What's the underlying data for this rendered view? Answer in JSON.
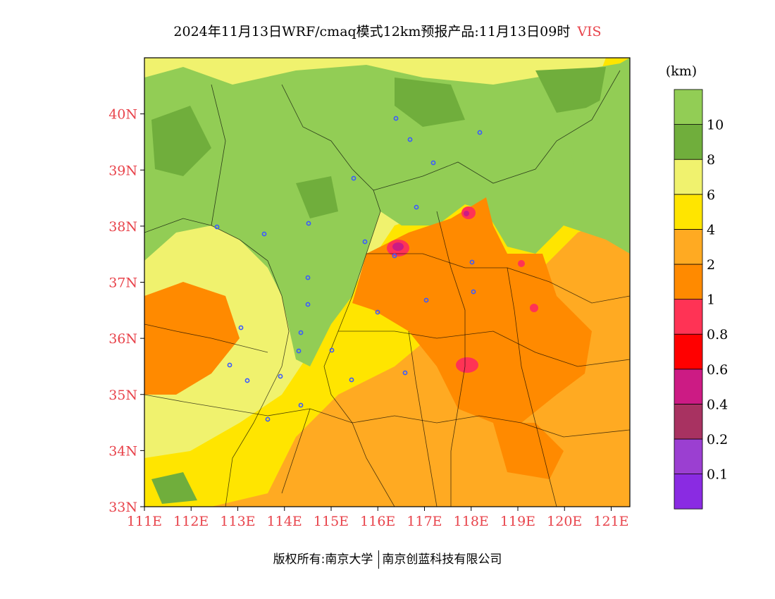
{
  "header": {
    "title": "2024年11月13日WRF/cmaq模式12km预报产品:11月13日09时",
    "variable": "VIS"
  },
  "map": {
    "lat_labels": [
      "40N",
      "39N",
      "38N",
      "37N",
      "36N",
      "35N",
      "34N",
      "33N"
    ],
    "lon_labels": [
      "111E",
      "112E",
      "113E",
      "114E",
      "115E",
      "116E",
      "117E",
      "118E",
      "119E",
      "120E",
      "121E"
    ],
    "extent": {
      "lon": [
        111,
        121.4
      ],
      "lat": [
        33,
        41
      ]
    },
    "city_marker_color": "#3b5bff"
  },
  "colorbar": {
    "unit": "(km)",
    "colors": [
      "#8a2be2",
      "#9b3fd1",
      "#a83261",
      "#cc1b84",
      "#ff0000",
      "#ff3355",
      "#ff8a00",
      "#ffaa22",
      "#ffe500",
      "#f0f26e",
      "#70ae3c",
      "#92cd55"
    ],
    "labels": [
      "0.1",
      "0.2",
      "0.4",
      "0.6",
      "0.8",
      "1",
      "2",
      "4",
      "6",
      "8",
      "10"
    ]
  },
  "footer": {
    "left": "版权所有:南京大学",
    "right": "南京创蓝科技有限公司"
  }
}
